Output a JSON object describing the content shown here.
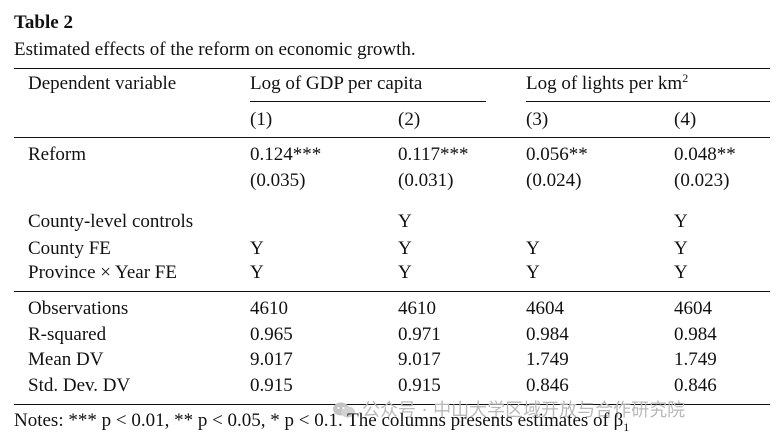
{
  "table": {
    "label": "Table 2",
    "caption": "Estimated effects of the reform on economic growth.",
    "header": {
      "dv_label": "Dependent variable",
      "group1": "Log of GDP per capita",
      "group2_base": "Log of lights per km",
      "group2_sup": "2",
      "columns": [
        "(1)",
        "(2)",
        "(3)",
        "(4)"
      ]
    },
    "rows": [
      {
        "label": "Reform",
        "values": [
          "0.124***",
          "0.117***",
          "0.056**",
          "0.048**"
        ]
      },
      {
        "label": "",
        "values": [
          "(0.035)",
          "(0.031)",
          "(0.024)",
          "(0.023)"
        ]
      },
      {
        "label": "County-level controls",
        "values": [
          "",
          "Y",
          "",
          "Y"
        ]
      },
      {
        "label": "County FE",
        "values": [
          "Y",
          "Y",
          "Y",
          "Y"
        ]
      },
      {
        "label": "Province × Year FE",
        "values": [
          "Y",
          "Y",
          "Y",
          "Y"
        ]
      },
      {
        "label": "Observations",
        "values": [
          "4610",
          "4610",
          "4604",
          "4604"
        ]
      },
      {
        "label": "R-squared",
        "values": [
          "0.965",
          "0.971",
          "0.984",
          "0.984"
        ]
      },
      {
        "label": "Mean DV",
        "values": [
          "9.017",
          "9.017",
          "1.749",
          "1.749"
        ]
      },
      {
        "label": "Std. Dev. DV",
        "values": [
          "0.915",
          "0.915",
          "0.846",
          "0.846"
        ]
      }
    ],
    "notes": "Notes: *** p < 0.01, ** p < 0.05, * p < 0.1. The columns presents estimates of β",
    "notes_sub": "1"
  },
  "watermark": {
    "text": "公众号 · 中山大学区域开放与合作研究院",
    "icon": "wechat-icon",
    "color": "#b9b9b9"
  }
}
